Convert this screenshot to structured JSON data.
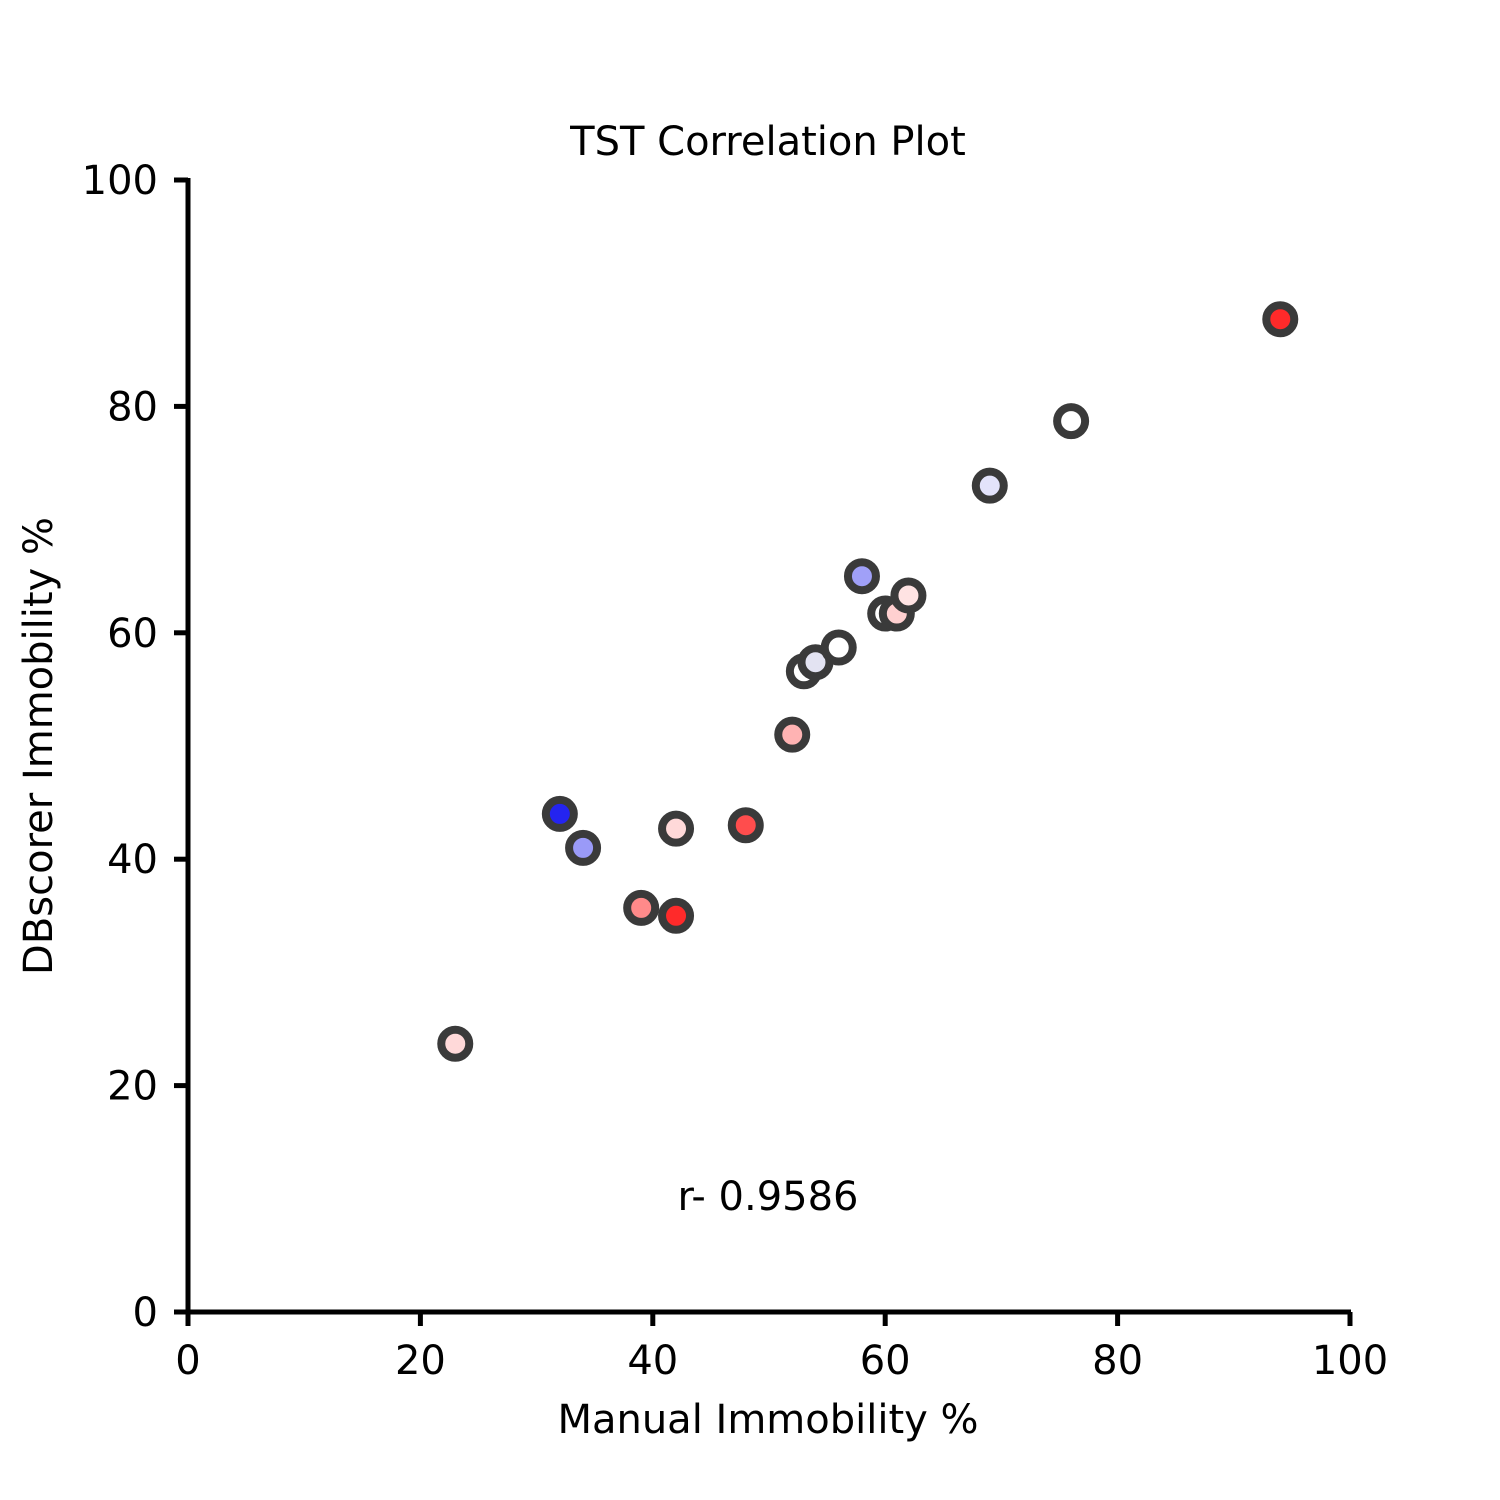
{
  "chart_data": {
    "type": "scatter",
    "title": "TST Correlation Plot",
    "xlabel": "Manual Immobility %",
    "ylabel": "DBscorer Immobility %",
    "xlim": [
      0,
      100
    ],
    "ylim": [
      0,
      100
    ],
    "xticks": [
      "0",
      "20",
      "40",
      "60",
      "80",
      "100"
    ],
    "yticks": [
      "0",
      "20",
      "40",
      "60",
      "80",
      "100"
    ],
    "grid": false,
    "annotation": "r- 0.9586",
    "marker_edge_color": "#3a3a3a",
    "points": [
      {
        "x": 23,
        "y": 23.7,
        "color": "#ffd9d9"
      },
      {
        "x": 32,
        "y": 44.0,
        "color": "#2424f0"
      },
      {
        "x": 34,
        "y": 41.0,
        "color": "#9a9af8"
      },
      {
        "x": 39,
        "y": 35.7,
        "color": "#ff8a8a"
      },
      {
        "x": 42,
        "y": 35.0,
        "color": "#ff2a2a"
      },
      {
        "x": 42,
        "y": 42.7,
        "color": "#ffd9d9"
      },
      {
        "x": 48,
        "y": 43.0,
        "color": "#ff4d4d"
      },
      {
        "x": 52,
        "y": 51.0,
        "color": "#ffb3b3"
      },
      {
        "x": 53,
        "y": 56.6,
        "color": "#ffffff"
      },
      {
        "x": 54,
        "y": 57.4,
        "color": "#e3e3f2"
      },
      {
        "x": 56,
        "y": 58.7,
        "color": "#ffffff"
      },
      {
        "x": 58,
        "y": 65.0,
        "color": "#a0a0f8"
      },
      {
        "x": 60,
        "y": 61.7,
        "color": "#ffffff"
      },
      {
        "x": 61,
        "y": 61.7,
        "color": "#ffd0d0"
      },
      {
        "x": 62,
        "y": 63.3,
        "color": "#ffe3e3"
      },
      {
        "x": 69,
        "y": 73.0,
        "color": "#e3e3fb"
      },
      {
        "x": 76,
        "y": 78.7,
        "color": "#ffffff"
      },
      {
        "x": 94,
        "y": 87.7,
        "color": "#ff2a2a"
      }
    ]
  }
}
